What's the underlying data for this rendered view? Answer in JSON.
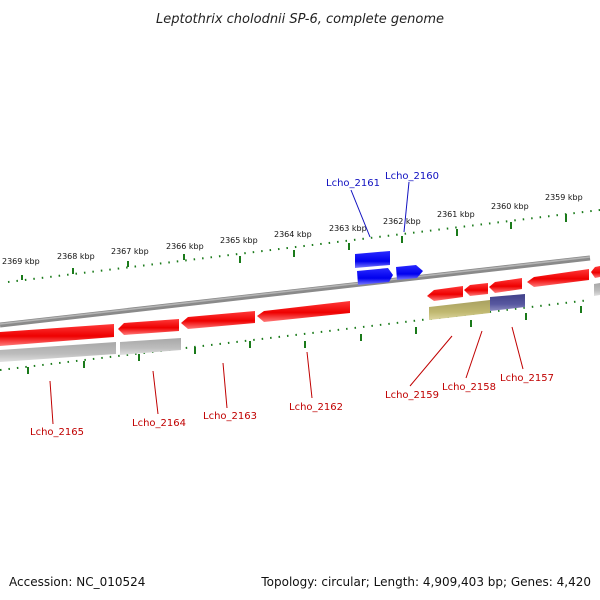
{
  "title": "Leptothrix cholodnii SP-6, complete genome",
  "accession_label": "Accession: NC_010524",
  "summary": "Topology: circular; Length: 4,909,403 bp; Genes: 4,420",
  "colors": {
    "forward_gene": "#1010ff",
    "reverse_gene": "#ff1010",
    "backbone": "#808080",
    "tick": "#1a7a1a",
    "forward_label": "#1010c0",
    "reverse_label": "#c00000",
    "gray_feature": "#b8b8b8",
    "olive_feature": "#b8b060",
    "navy_feature": "#505090"
  },
  "kbp_labels": [
    "2369 kbp",
    "2368 kbp",
    "2367 kbp",
    "2366 kbp",
    "2365 kbp",
    "2364 kbp",
    "2363 kbp",
    "2362 kbp",
    "2361 kbp",
    "2360 kbp",
    "2359 kbp"
  ],
  "genes": [
    {
      "id": "Lcho_2165",
      "strand": "reverse"
    },
    {
      "id": "Lcho_2164",
      "strand": "reverse"
    },
    {
      "id": "Lcho_2163",
      "strand": "reverse"
    },
    {
      "id": "Lcho_2162",
      "strand": "reverse"
    },
    {
      "id": "Lcho_2161",
      "strand": "forward"
    },
    {
      "id": "Lcho_2160",
      "strand": "forward"
    },
    {
      "id": "Lcho_2159",
      "strand": "reverse"
    },
    {
      "id": "Lcho_2158",
      "strand": "reverse"
    },
    {
      "id": "Lcho_2157",
      "strand": "reverse"
    }
  ]
}
